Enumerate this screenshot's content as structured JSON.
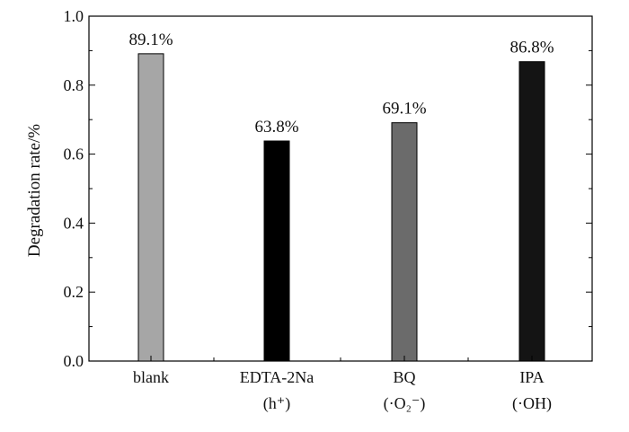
{
  "chart_data": {
    "type": "bar",
    "ylabel": "Degradation rate/%",
    "xlabel": "",
    "ylim": [
      0.0,
      1.0
    ],
    "yticks": [
      "0.0",
      "0.2",
      "0.4",
      "0.6",
      "0.8",
      "1.0"
    ],
    "grid": false,
    "legend": "none",
    "categories": [
      {
        "label": "blank",
        "sub": ""
      },
      {
        "label": "EDTA-2Na",
        "sub": "(h⁺)"
      },
      {
        "label": "BQ",
        "sub": "(·O₂⁻)"
      },
      {
        "label": "IPA",
        "sub": "(·OH)"
      }
    ],
    "values": [
      0.891,
      0.638,
      0.691,
      0.868
    ],
    "data_labels": [
      "89.1%",
      "63.8%",
      "69.1%",
      "86.8%"
    ],
    "colors": [
      "#a6a6a6",
      "#000000",
      "#6b6b6b",
      "#141414"
    ]
  }
}
